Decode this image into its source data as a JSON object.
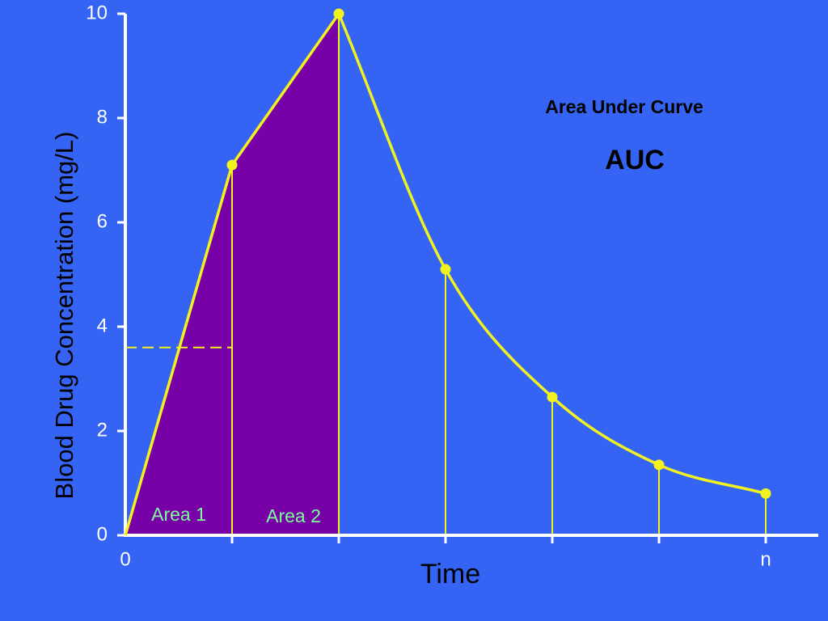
{
  "chart_data": {
    "type": "line",
    "title": "Area Under Curve",
    "subtitle": "AUC",
    "x_label": "Time",
    "y_label": "Blood Drug Concentration (mg/L)",
    "categories": [
      "0",
      null,
      null,
      null,
      null,
      null,
      "n"
    ],
    "values": [
      0,
      7.1,
      10,
      5.1,
      2.65,
      1.35,
      0.8
    ],
    "color": "#f2f21e",
    "area_color": "#7700a6",
    "areas": [
      "Area 1",
      "Area 2"
    ],
    "dashed_line_value": 3.6,
    "ylim": [
      0,
      10
    ],
    "yticks": [
      0,
      2,
      4,
      6,
      8,
      10
    ]
  }
}
